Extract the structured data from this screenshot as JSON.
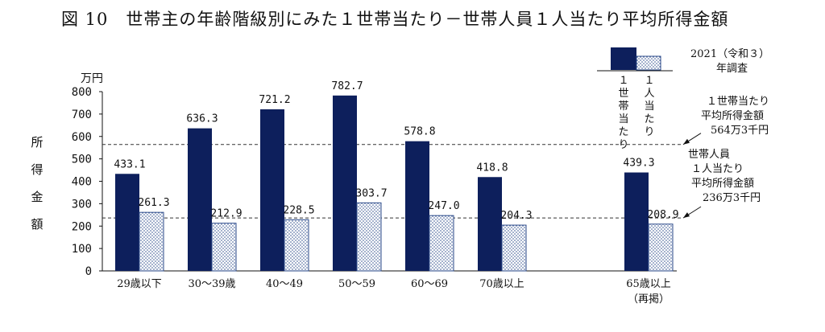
{
  "chart_data": {
    "type": "bar",
    "title": "図 10　世帯主の年齢階級別にみた１世帯当たり－世帯人員１人当たり平均所得金額",
    "ylabel": "所得金額",
    "y_unit": "万円",
    "ylim": [
      0,
      800
    ],
    "yticks": [
      0,
      100,
      200,
      300,
      400,
      500,
      600,
      700,
      800
    ],
    "categories": [
      "29歳以下",
      "30～39歳",
      "40～49",
      "50～59",
      "60～69",
      "70歳以上",
      "65歳以上"
    ],
    "category_sublabels": [
      "",
      "",
      "",
      "",
      "",
      "",
      "（再掲）"
    ],
    "series": [
      {
        "name": "１世帯当たり",
        "values": [
          433.1,
          636.3,
          721.2,
          782.7,
          578.8,
          418.8,
          439.3
        ],
        "labels": [
          "433.1",
          "636.3",
          "721.2",
          "782.7",
          "578.8",
          "418.8",
          "439.3"
        ]
      },
      {
        "name": "１人当たり",
        "values": [
          261.3,
          212.9,
          228.5,
          303.7,
          247.0,
          204.3,
          208.9
        ],
        "labels": [
          "261.3",
          "212.9",
          "228.5",
          "303.7",
          "247.0",
          "204.3",
          "208.9"
        ]
      }
    ],
    "reference_lines": [
      {
        "value": 564.3,
        "lines": [
          "１世帯当たり",
          "平均所得金額",
          "564万3千円"
        ]
      },
      {
        "value": 236.3,
        "lines": [
          "世帯人員",
          "１人当たり",
          "平均所得金額",
          "236万3千円"
        ]
      }
    ],
    "survey_note": [
      "2021（令和３）",
      "年調査"
    ],
    "grid": false,
    "legend": "top-right",
    "colors": {
      "per_household": "#0d1f5c",
      "per_person_dots": "#2b4a8a",
      "per_person_bg": "#ffffff"
    }
  }
}
